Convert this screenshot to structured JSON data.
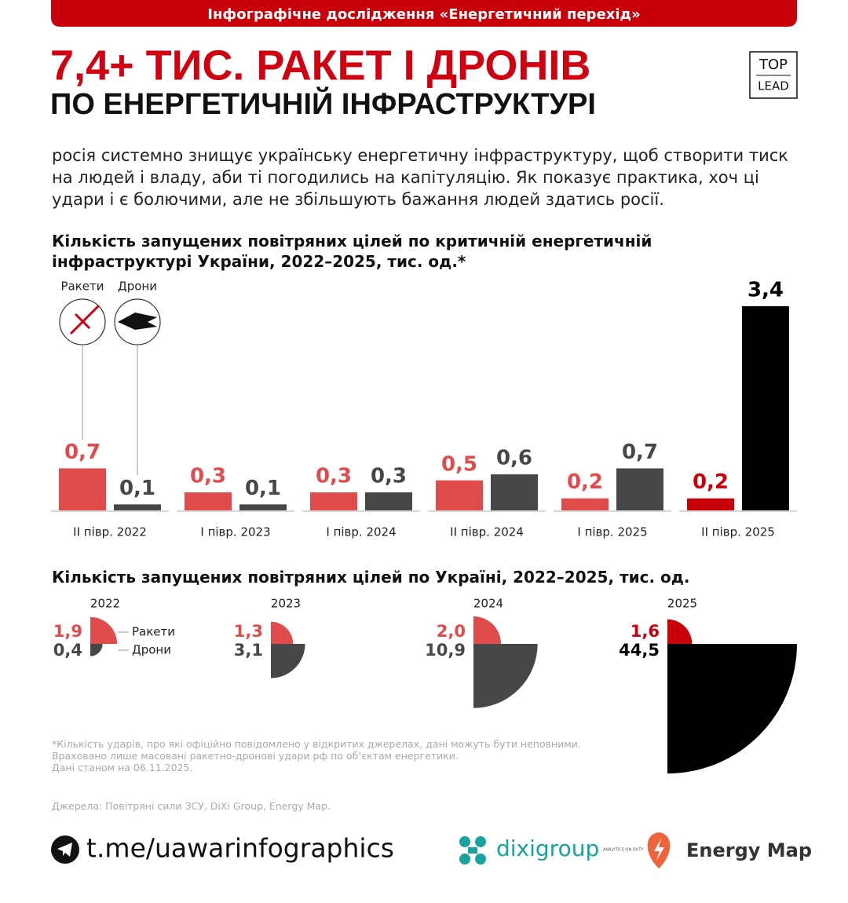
{
  "header": "Інфографічне дослідження «Енергетичний перехід»",
  "title": [
    "7,4+ ТИС. РАКЕТ І ДРОНІВ",
    "ПО ЕНЕРГЕТИЧНІЙ ІНФРАСТРУКТУРІ"
  ],
  "logo": [
    "TOP",
    "LEAD"
  ],
  "intro": "росія системно знищує українську енергетичну інфраструктуру, щоб створити тиск на людей і владу, аби ті погодились на капітуляцію. Як показує практика, хоч ці удари і є болючими, але не збільшують бажання людей здатись росії.",
  "chart_data": [
    {
      "type": "bar",
      "title": "Кількість запущених повітряних цілей по критичній енергетичній інфраструктурі України, 2022–2025, тис. од.*",
      "categories": [
        "ІІ півр. 2022",
        "І півр. 2023",
        "І півр. 2024",
        "ІІ півр. 2024",
        "І півр. 2025",
        "ІІ півр. 2025"
      ],
      "highlight_last": true,
      "series": [
        {
          "name": "Ракети",
          "color": "#e04b4b",
          "highlight_color": "#c8000a",
          "values": [
            0.7,
            0.3,
            0.3,
            0.5,
            0.2,
            0.2
          ],
          "value_labels": [
            "0,7",
            "0,3",
            "0,3",
            "0,5",
            "0,2",
            "0,2"
          ]
        },
        {
          "name": "Дрони",
          "color": "#474747",
          "highlight_color": "#000000",
          "values": [
            0.1,
            0.1,
            0.3,
            0.6,
            0.7,
            3.4
          ],
          "value_labels": [
            "0,1",
            "0,1",
            "0,3",
            "0,6",
            "0,7",
            "3,4"
          ]
        }
      ]
    },
    {
      "type": "quarter-circle",
      "title": "Кількість запущених повітряних цілей по Україні, 2022–2025, тис. од.",
      "categories": [
        "2022",
        "2023",
        "2024",
        "2025"
      ],
      "highlight_last": true,
      "series": [
        {
          "name": "Ракети",
          "color": "#e04b4b",
          "highlight_color": "#c8000a",
          "values": [
            1.9,
            1.3,
            2.0,
            1.6
          ],
          "value_labels": [
            "1,9",
            "1,3",
            "2,0",
            "1,6"
          ]
        },
        {
          "name": "Дрони",
          "color": "#474747",
          "highlight_color": "#000000",
          "values": [
            0.4,
            3.1,
            10.9,
            44.5
          ],
          "value_labels": [
            "0,4",
            "3,1",
            "10,9",
            "44,5"
          ]
        }
      ]
    }
  ],
  "footnotes": [
    "*Кількість ударів, про які офіційно повідомлено у відкритих джерелах, дані можуть бути неповними.",
    "Враховано лише масовані ракетно-дронові удари рф по об’єктам енергетики.",
    "Дані станом на 06.11.2025."
  ],
  "sources": "Джерела: Повітряні сили ЗСУ, DiXi Group, Energy Map.",
  "footer": {
    "telegram": "t.me/uawarinfographics",
    "dixi": "dixigroup",
    "dixi_tag": "ANALYTICS ON DUTY",
    "energy_map": "Energy Map"
  }
}
